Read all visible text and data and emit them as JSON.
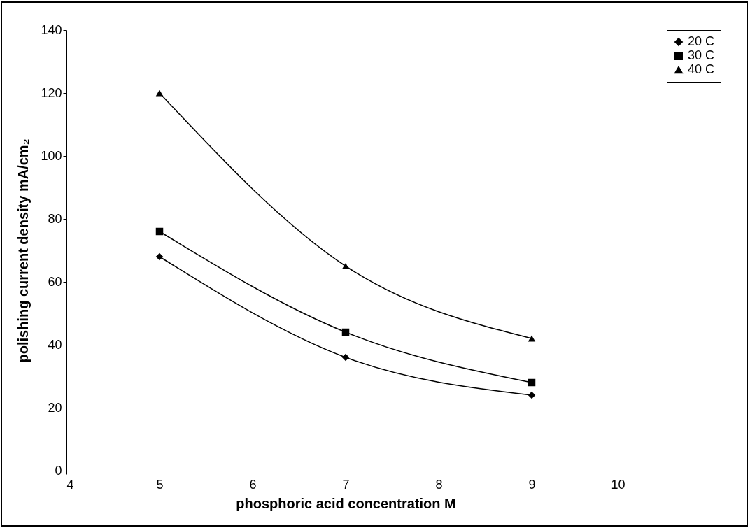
{
  "chart_data": {
    "type": "line",
    "xlabel": "phosphoric acid concentration  M",
    "ylabel": "polishing current density  mA/cm₂",
    "x": [
      5,
      7,
      9
    ],
    "series": [
      {
        "name": "20 C",
        "color": "#000000",
        "marker": "diamond",
        "values": [
          68,
          36,
          24
        ]
      },
      {
        "name": "30 C",
        "color": "#000000",
        "marker": "square",
        "values": [
          76,
          44,
          28
        ]
      },
      {
        "name": "40 C",
        "color": "#000000",
        "marker": "triangle",
        "values": [
          120,
          65,
          42
        ]
      }
    ],
    "xlim": [
      4,
      10
    ],
    "xticks": [
      4,
      5,
      6,
      7,
      8,
      9,
      10
    ],
    "ylim": [
      0,
      140
    ],
    "yticks": [
      0,
      20,
      40,
      60,
      80,
      100,
      120,
      140
    ],
    "grid": false,
    "legend": "top right",
    "line_style": "solid"
  }
}
